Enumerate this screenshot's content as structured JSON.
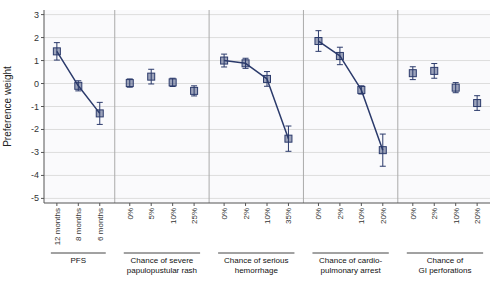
{
  "chart_data": {
    "type": "line",
    "ylabel": "Preference weight",
    "ylim": [
      -5.2,
      3.2
    ],
    "yticks": [
      3,
      2,
      1,
      0,
      -1,
      -2,
      -3,
      -4,
      -5
    ],
    "grid": true,
    "color": "#2b3a6b",
    "marker": "square",
    "series": [
      {
        "name": "PFS",
        "categories": [
          "12 months",
          "8 months",
          "6 months"
        ],
        "values": [
          1.4,
          -0.1,
          -1.3
        ],
        "errors": [
          0.38,
          0.22,
          0.48
        ],
        "line_style": "solid"
      },
      {
        "name": "Chance of severe\npapulopustular rash",
        "categories": [
          "0%",
          "5%",
          "10%",
          "25%"
        ],
        "values": [
          0.02,
          0.3,
          0.05,
          -0.32
        ],
        "errors": [
          0.18,
          0.32,
          0.18,
          0.22
        ],
        "line_style": "none"
      },
      {
        "name": "Chance of serious\nhemorrhage",
        "categories": [
          "0%",
          "2%",
          "10%",
          "35%"
        ],
        "values": [
          1.0,
          0.88,
          0.2,
          -2.4
        ],
        "errors": [
          0.28,
          0.22,
          0.32,
          0.55
        ],
        "line_style": "solid"
      },
      {
        "name": "Chance of cardio-\npulmonary arrest",
        "categories": [
          "0%",
          "2%",
          "10%",
          "20%"
        ],
        "values": [
          1.85,
          1.2,
          -0.28,
          -2.9
        ],
        "errors": [
          0.45,
          0.38,
          0.18,
          0.7
        ],
        "line_style": "solid"
      },
      {
        "name": "Chance of\nGI perforations",
        "categories": [
          "0%",
          "2%",
          "10%",
          "20%"
        ],
        "values": [
          0.45,
          0.55,
          -0.18,
          -0.85
        ],
        "errors": [
          0.28,
          0.32,
          0.22,
          0.32
        ],
        "line_style": "none"
      }
    ]
  }
}
